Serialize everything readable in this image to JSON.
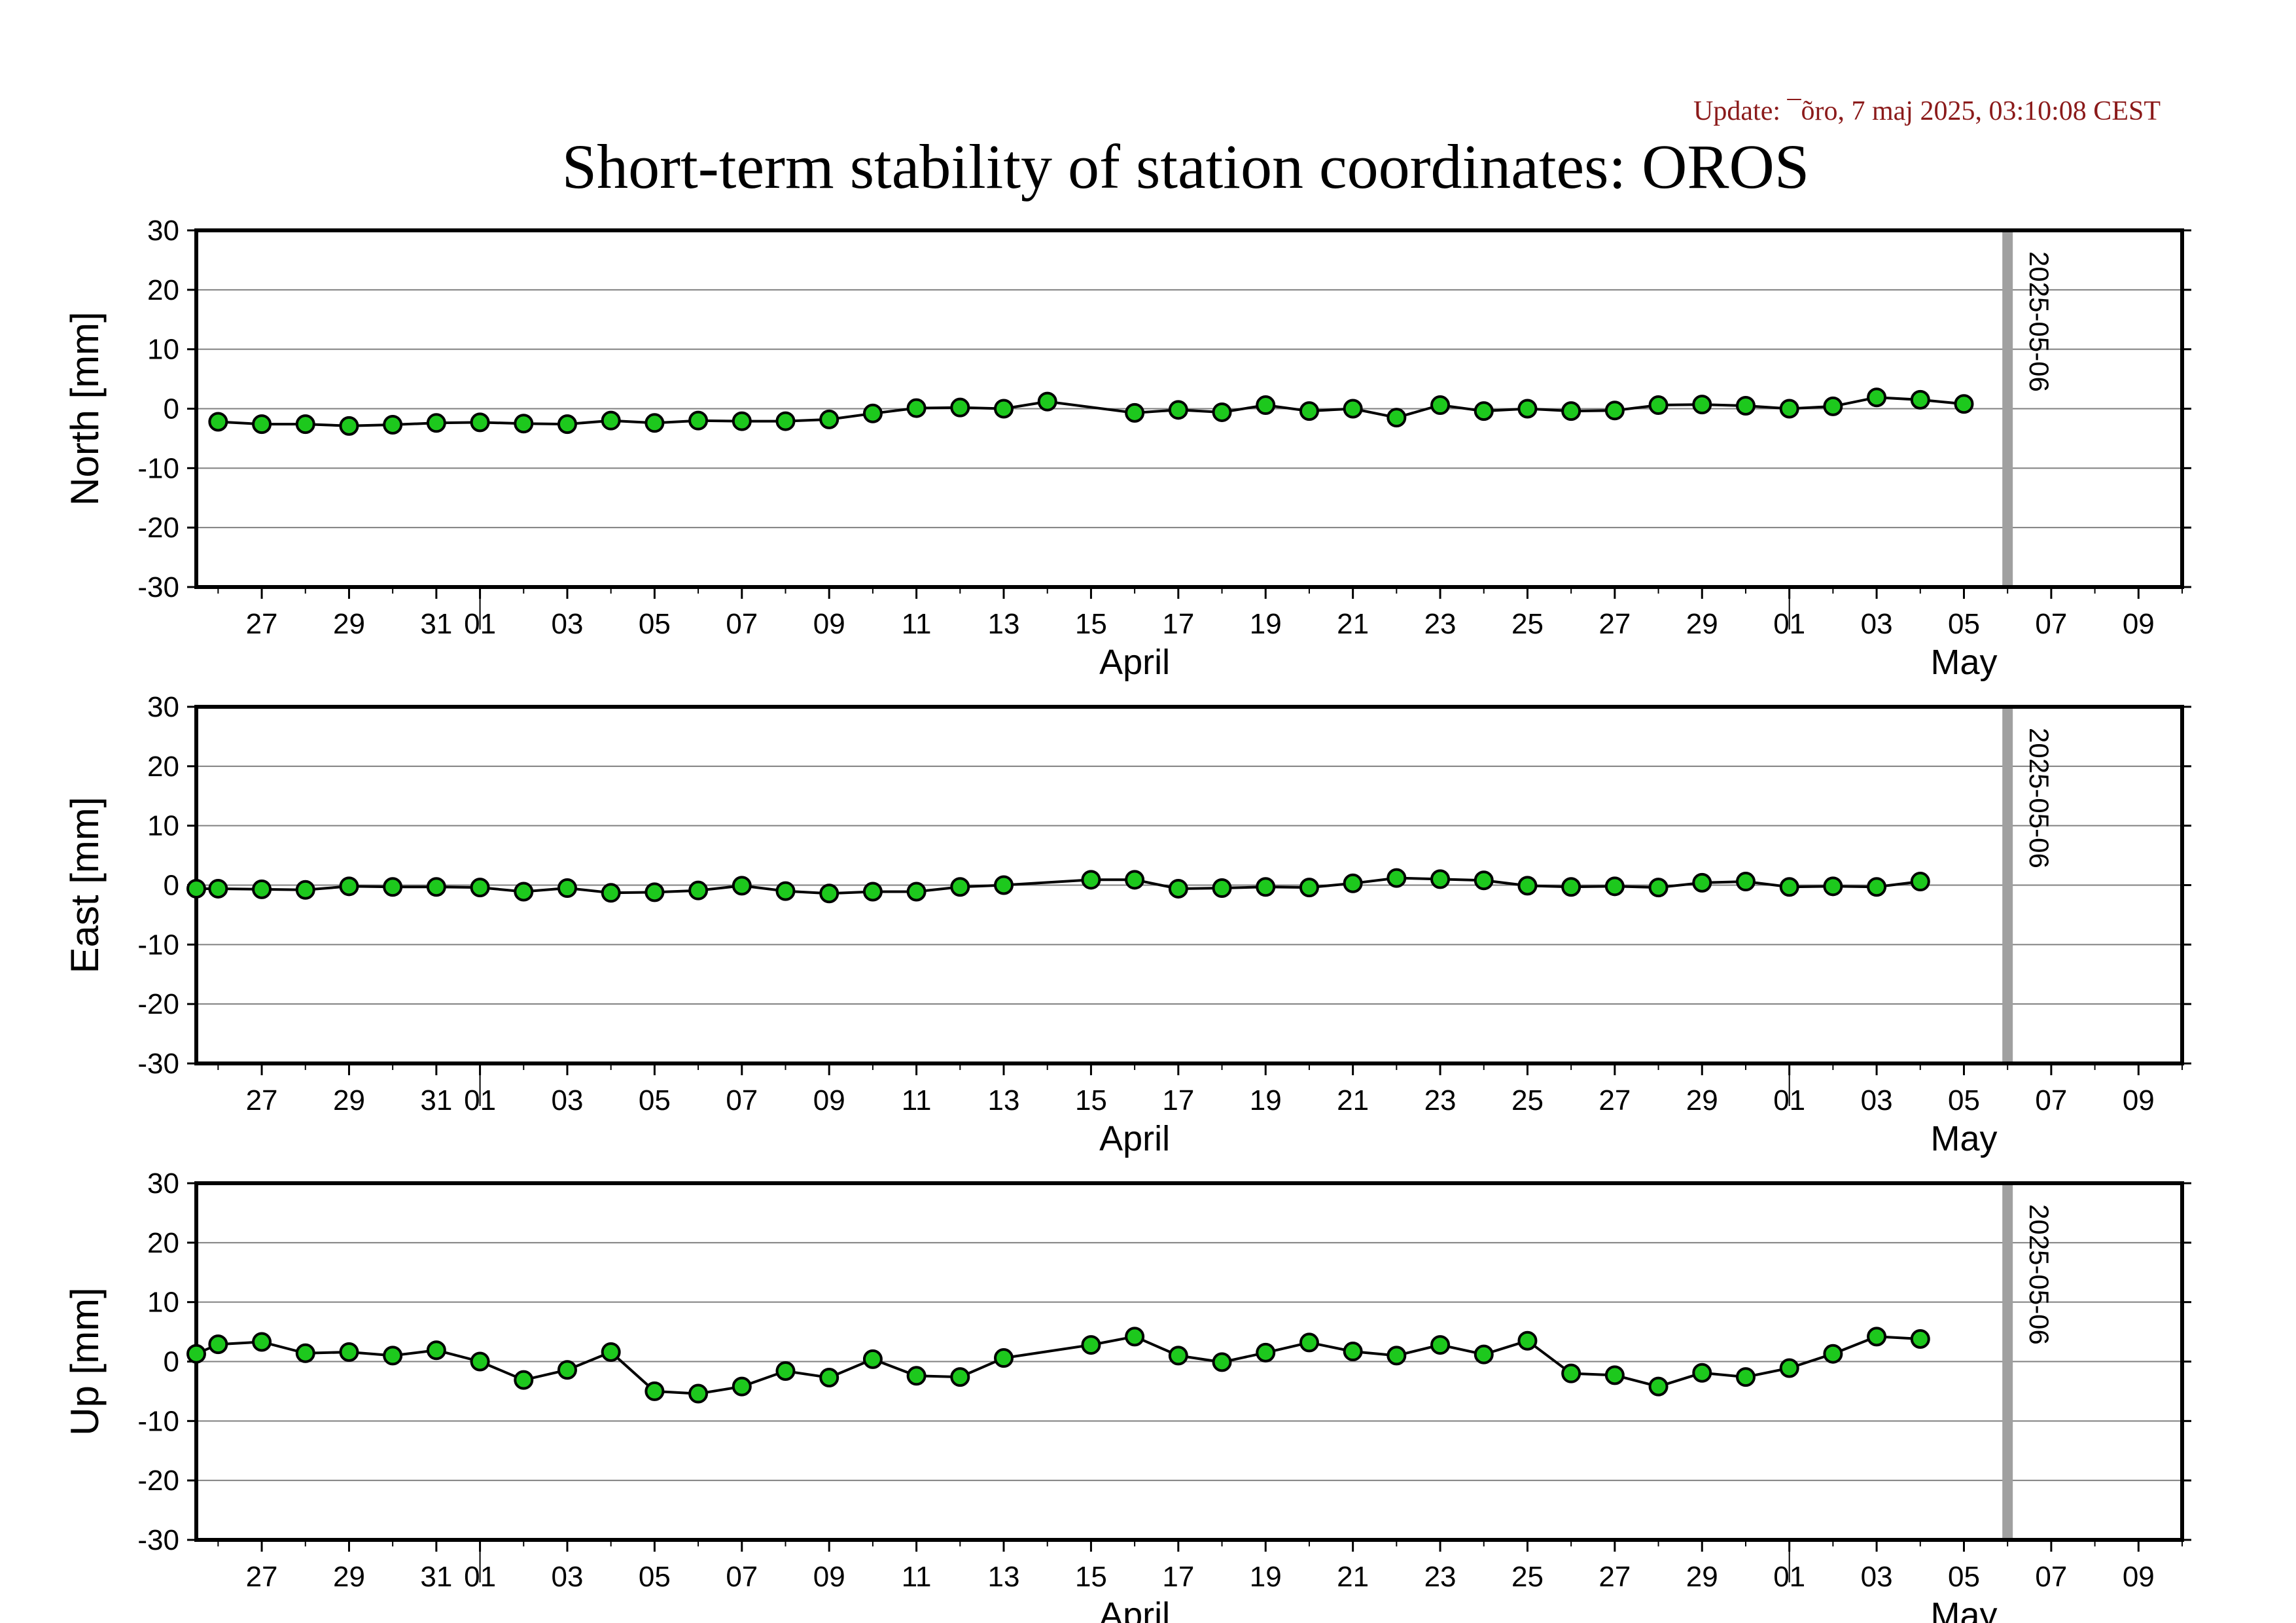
{
  "page": {
    "update_text": "Update: ¯õro, 7 maj 2025, 03:10:08 CEST",
    "title": "Short-term stability of station coordinates: OROS"
  },
  "colors": {
    "update_text": "#8b1a1a",
    "marker_fill": "#1dc81d",
    "marker_stroke": "#000000",
    "line": "#000000",
    "grid": "#808080",
    "marker_line": "#a0a0a0",
    "frame": "#000000"
  },
  "chart_data": [
    {
      "type": "line",
      "panel": "north",
      "ylabel": "North [mm]",
      "ylim": [
        -30,
        30
      ],
      "yticks": [
        30,
        20,
        10,
        0,
        -10,
        -20,
        -30
      ],
      "xlim": [
        "2025-03-25T12:00",
        "2025-05-10T00:00"
      ],
      "x_tick_labels": [
        "27",
        "29",
        "31",
        "01",
        "03",
        "05",
        "07",
        "09",
        "11",
        "13",
        "15",
        "17",
        "19",
        "21",
        "23",
        "25",
        "27",
        "29",
        "01",
        "03",
        "05",
        "07",
        "09"
      ],
      "x_tick_dates": [
        "2025-03-27",
        "2025-03-29",
        "2025-03-31",
        "2025-04-01",
        "2025-04-03",
        "2025-04-05",
        "2025-04-07",
        "2025-04-09",
        "2025-04-11",
        "2025-04-13",
        "2025-04-15",
        "2025-04-17",
        "2025-04-19",
        "2025-04-21",
        "2025-04-23",
        "2025-04-25",
        "2025-04-27",
        "2025-04-29",
        "2025-05-01",
        "2025-05-03",
        "2025-05-05",
        "2025-05-07",
        "2025-05-09"
      ],
      "month_labels": [
        {
          "label": "April",
          "date": "2025-04-16"
        },
        {
          "label": "May",
          "date": "2025-05-05"
        }
      ],
      "month_boundaries": [
        "2025-04-01",
        "2025-05-01"
      ],
      "marker_line": {
        "date": "2025-05-06",
        "label": "2025-05-06"
      },
      "grid": true,
      "x": [
        "2025-03-26",
        "2025-03-27",
        "2025-03-28",
        "2025-03-29",
        "2025-03-30",
        "2025-03-31",
        "2025-04-01",
        "2025-04-02",
        "2025-04-03",
        "2025-04-04",
        "2025-04-05",
        "2025-04-06",
        "2025-04-07",
        "2025-04-08",
        "2025-04-09",
        "2025-04-10",
        "2025-04-11",
        "2025-04-12",
        "2025-04-13",
        "2025-04-14",
        "2025-04-16",
        "2025-04-17",
        "2025-04-18",
        "2025-04-19",
        "2025-04-20",
        "2025-04-21",
        "2025-04-22",
        "2025-04-23",
        "2025-04-24",
        "2025-04-25",
        "2025-04-26",
        "2025-04-27",
        "2025-04-28",
        "2025-04-29",
        "2025-04-30",
        "2025-05-01",
        "2025-05-02",
        "2025-05-03",
        "2025-05-04",
        "2025-05-05"
      ],
      "values": [
        -2.2,
        -2.6,
        -2.6,
        -2.9,
        -2.7,
        -2.4,
        -2.3,
        -2.5,
        -2.6,
        -2.0,
        -2.4,
        -2.0,
        -2.1,
        -2.1,
        -1.8,
        -0.8,
        0.1,
        0.2,
        0.0,
        1.2,
        -0.7,
        -0.2,
        -0.6,
        0.6,
        -0.4,
        0.0,
        -1.5,
        0.6,
        -0.4,
        0.0,
        -0.4,
        -0.3,
        0.6,
        0.7,
        0.5,
        0.0,
        0.4,
        1.9,
        1.5,
        0.8
      ]
    },
    {
      "type": "line",
      "panel": "east",
      "ylabel": "East [mm]",
      "ylim": [
        -30,
        30
      ],
      "yticks": [
        30,
        20,
        10,
        0,
        -10,
        -20,
        -30
      ],
      "xlim": [
        "2025-03-25T12:00",
        "2025-05-10T00:00"
      ],
      "x_tick_labels": [
        "27",
        "29",
        "31",
        "01",
        "03",
        "05",
        "07",
        "09",
        "11",
        "13",
        "15",
        "17",
        "19",
        "21",
        "23",
        "25",
        "27",
        "29",
        "01",
        "03",
        "05",
        "07",
        "09"
      ],
      "x_tick_dates": [
        "2025-03-27",
        "2025-03-29",
        "2025-03-31",
        "2025-04-01",
        "2025-04-03",
        "2025-04-05",
        "2025-04-07",
        "2025-04-09",
        "2025-04-11",
        "2025-04-13",
        "2025-04-15",
        "2025-04-17",
        "2025-04-19",
        "2025-04-21",
        "2025-04-23",
        "2025-04-25",
        "2025-04-27",
        "2025-04-29",
        "2025-05-01",
        "2025-05-03",
        "2025-05-05",
        "2025-05-07",
        "2025-05-09"
      ],
      "month_labels": [
        {
          "label": "April",
          "date": "2025-04-16"
        },
        {
          "label": "May",
          "date": "2025-05-05"
        }
      ],
      "month_boundaries": [
        "2025-04-01",
        "2025-05-01"
      ],
      "marker_line": {
        "date": "2025-05-06",
        "label": "2025-05-06"
      },
      "grid": true,
      "x": [
        "2025-03-25T12:00",
        "2025-03-26",
        "2025-03-27",
        "2025-03-28",
        "2025-03-29",
        "2025-03-30",
        "2025-03-31",
        "2025-04-01",
        "2025-04-02",
        "2025-04-03",
        "2025-04-04",
        "2025-04-05",
        "2025-04-06",
        "2025-04-07",
        "2025-04-08",
        "2025-04-09",
        "2025-04-10",
        "2025-04-11",
        "2025-04-12",
        "2025-04-13",
        "2025-04-15",
        "2025-04-16",
        "2025-04-17",
        "2025-04-18",
        "2025-04-19",
        "2025-04-20",
        "2025-04-21",
        "2025-04-22",
        "2025-04-23",
        "2025-04-24",
        "2025-04-25",
        "2025-04-26",
        "2025-04-27",
        "2025-04-28",
        "2025-04-29",
        "2025-04-30",
        "2025-05-01",
        "2025-05-02",
        "2025-05-03",
        "2025-05-04"
      ],
      "values": [
        -0.6,
        -0.6,
        -0.7,
        -0.8,
        -0.2,
        -0.3,
        -0.3,
        -0.4,
        -1.1,
        -0.5,
        -1.3,
        -1.2,
        -0.9,
        -0.1,
        -1.0,
        -1.4,
        -1.1,
        -1.1,
        -0.3,
        0.0,
        0.9,
        0.9,
        -0.6,
        -0.5,
        -0.3,
        -0.4,
        0.3,
        1.2,
        1.0,
        0.8,
        -0.1,
        -0.3,
        -0.2,
        -0.4,
        0.4,
        0.6,
        -0.3,
        -0.2,
        -0.3,
        0.6
      ]
    },
    {
      "type": "line",
      "panel": "up",
      "ylabel": "Up [mm]",
      "ylim": [
        -30,
        30
      ],
      "yticks": [
        30,
        20,
        10,
        0,
        -10,
        -20,
        -30
      ],
      "xlim": [
        "2025-03-25T12:00",
        "2025-05-10T00:00"
      ],
      "x_tick_labels": [
        "27",
        "29",
        "31",
        "01",
        "03",
        "05",
        "07",
        "09",
        "11",
        "13",
        "15",
        "17",
        "19",
        "21",
        "23",
        "25",
        "27",
        "29",
        "01",
        "03",
        "05",
        "07",
        "09"
      ],
      "x_tick_dates": [
        "2025-03-27",
        "2025-03-29",
        "2025-03-31",
        "2025-04-01",
        "2025-04-03",
        "2025-04-05",
        "2025-04-07",
        "2025-04-09",
        "2025-04-11",
        "2025-04-13",
        "2025-04-15",
        "2025-04-17",
        "2025-04-19",
        "2025-04-21",
        "2025-04-23",
        "2025-04-25",
        "2025-04-27",
        "2025-04-29",
        "2025-05-01",
        "2025-05-03",
        "2025-05-05",
        "2025-05-07",
        "2025-05-09"
      ],
      "month_labels": [
        {
          "label": "April",
          "date": "2025-04-16"
        },
        {
          "label": "May",
          "date": "2025-05-05"
        }
      ],
      "month_boundaries": [
        "2025-04-01",
        "2025-05-01"
      ],
      "marker_line": {
        "date": "2025-05-06",
        "label": "2025-05-06"
      },
      "grid": true,
      "x": [
        "2025-03-25T12:00",
        "2025-03-26",
        "2025-03-27",
        "2025-03-28",
        "2025-03-29",
        "2025-03-30",
        "2025-03-31",
        "2025-04-01",
        "2025-04-02",
        "2025-04-03",
        "2025-04-04",
        "2025-04-05",
        "2025-04-06",
        "2025-04-07",
        "2025-04-08",
        "2025-04-09",
        "2025-04-10",
        "2025-04-11",
        "2025-04-12",
        "2025-04-13",
        "2025-04-15",
        "2025-04-16",
        "2025-04-17",
        "2025-04-18",
        "2025-04-19",
        "2025-04-20",
        "2025-04-21",
        "2025-04-22",
        "2025-04-23",
        "2025-04-24",
        "2025-04-25",
        "2025-04-26",
        "2025-04-27",
        "2025-04-28",
        "2025-04-29",
        "2025-04-30",
        "2025-05-01",
        "2025-05-02",
        "2025-05-03",
        "2025-05-04"
      ],
      "values": [
        1.3,
        2.9,
        3.3,
        1.4,
        1.6,
        1.0,
        1.9,
        0.0,
        -3.1,
        -1.4,
        1.6,
        -5.0,
        -5.4,
        -4.2,
        -1.6,
        -2.7,
        0.4,
        -2.4,
        -2.6,
        0.6,
        2.8,
        4.2,
        1.0,
        -0.1,
        1.5,
        3.2,
        1.7,
        1.0,
        2.8,
        1.2,
        3.5,
        -2.0,
        -2.3,
        -4.2,
        -1.9,
        -2.6,
        -1.1,
        1.3,
        4.2,
        3.8
      ]
    }
  ]
}
